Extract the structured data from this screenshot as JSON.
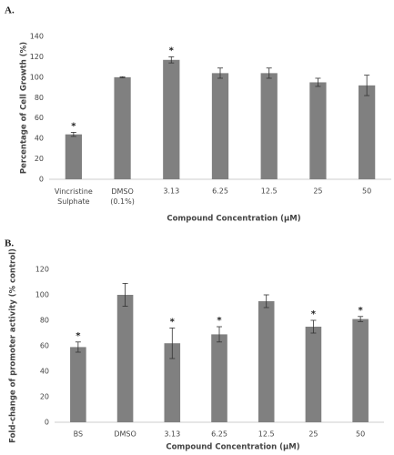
{
  "chart_data": [
    {
      "type": "bar",
      "panel": "A.",
      "ylabel": "Percentage of Cell Growth (%)",
      "xlabel": "Compound Concentration (µM)",
      "categories": [
        "Vincristine\nSulphate",
        "DMSO\n(0.1%)",
        "3.13",
        "6.25",
        "12.5",
        "25",
        "50"
      ],
      "values": [
        44,
        100,
        117,
        104,
        104,
        95,
        92
      ],
      "errors": [
        2,
        0.5,
        3,
        5,
        5,
        4,
        10
      ],
      "markers": [
        "*",
        null,
        "*",
        null,
        null,
        null,
        null
      ],
      "color": "#808080",
      "ylim": [
        0,
        140
      ],
      "yticks": [
        0,
        20,
        40,
        60,
        80,
        100,
        120,
        140
      ],
      "grid": false
    },
    {
      "type": "bar",
      "panel": "B.",
      "ylabel": "Fold-change of promoter activity (% control)",
      "xlabel": "Compound Concentration (µM)",
      "categories": [
        "BS",
        "DMSO",
        "3.13",
        "6.25",
        "12.5",
        "25",
        "50"
      ],
      "values": [
        59,
        100,
        62,
        69,
        95,
        75,
        81
      ],
      "errors": [
        4,
        9,
        12,
        6,
        5,
        5,
        2
      ],
      "markers": [
        "*",
        null,
        "*",
        "*",
        null,
        "*",
        "*"
      ],
      "color": "#808080",
      "ylim": [
        0,
        120
      ],
      "yticks": [
        0,
        20,
        40,
        60,
        80,
        100,
        120
      ],
      "grid": false
    }
  ]
}
